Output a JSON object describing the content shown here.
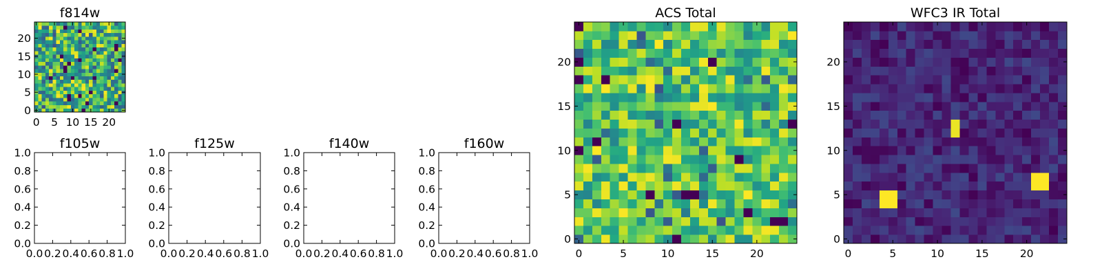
{
  "chart_data": [
    {
      "id": "f814w",
      "type": "heatmap",
      "title": "f814w",
      "grid_size": [
        25,
        25
      ],
      "xlim": [
        -0.5,
        24.5
      ],
      "ylim": [
        -0.5,
        24.5
      ],
      "xticks": [
        0,
        5,
        10,
        15,
        20
      ],
      "yticks": [
        0,
        5,
        10,
        15,
        20
      ],
      "colormap": "viridis",
      "pattern": "noise",
      "range": [
        0.3,
        1.0
      ],
      "seed": 814,
      "values_note": "Pixel intensities are random noise; individual values not legible"
    },
    {
      "id": "f105w",
      "type": "heatmap",
      "title": "f105w",
      "empty": true,
      "xlim": [
        0.0,
        1.0
      ],
      "ylim": [
        0.0,
        1.0
      ],
      "xticks": [
        "0.0",
        "0.2",
        "0.4",
        "0.6",
        "0.8",
        "1.0"
      ],
      "yticks": [
        "0.0",
        "0.2",
        "0.4",
        "0.6",
        "0.8",
        "1.0"
      ]
    },
    {
      "id": "f125w",
      "type": "heatmap",
      "title": "f125w",
      "empty": true,
      "xlim": [
        0.0,
        1.0
      ],
      "ylim": [
        0.0,
        1.0
      ],
      "xticks": [
        "0.0",
        "0.2",
        "0.4",
        "0.6",
        "0.8",
        "1.0"
      ],
      "yticks": [
        "0.0",
        "0.2",
        "0.4",
        "0.6",
        "0.8",
        "1.0"
      ]
    },
    {
      "id": "f140w",
      "type": "heatmap",
      "title": "f140w",
      "empty": true,
      "xlim": [
        0.0,
        1.0
      ],
      "ylim": [
        0.0,
        1.0
      ],
      "xticks": [
        "0.0",
        "0.2",
        "0.4",
        "0.6",
        "0.8",
        "1.0"
      ],
      "yticks": [
        "0.0",
        "0.2",
        "0.4",
        "0.6",
        "0.8",
        "1.0"
      ]
    },
    {
      "id": "f160w",
      "type": "heatmap",
      "title": "f160w",
      "empty": true,
      "xlim": [
        0.0,
        1.0
      ],
      "ylim": [
        0.0,
        1.0
      ],
      "xticks": [
        "0.0",
        "0.2",
        "0.4",
        "0.6",
        "0.8",
        "1.0"
      ],
      "yticks": [
        "0.0",
        "0.2",
        "0.4",
        "0.6",
        "0.8",
        "1.0"
      ]
    },
    {
      "id": "acs-total",
      "type": "heatmap",
      "title": "ACS Total",
      "grid_size": [
        25,
        25
      ],
      "xlim": [
        -0.5,
        24.5
      ],
      "ylim": [
        -0.5,
        24.5
      ],
      "xticks": [
        0,
        5,
        10,
        15,
        20
      ],
      "yticks": [
        0,
        5,
        10,
        15,
        20
      ],
      "colormap": "viridis",
      "pattern": "noise",
      "range": [
        0.45,
        1.0
      ],
      "seed": 4242,
      "values_note": "Pixel intensities are random noise; individual values not legible"
    },
    {
      "id": "wfc3-ir-total",
      "type": "heatmap",
      "title": "WFC3 IR Total",
      "grid_size": [
        25,
        25
      ],
      "xlim": [
        -0.5,
        24.5
      ],
      "ylim": [
        -0.5,
        24.5
      ],
      "xticks": [
        0,
        5,
        10,
        15,
        20
      ],
      "yticks": [
        0,
        5,
        10,
        15,
        20
      ],
      "colormap": "viridis",
      "pattern": "noise",
      "range": [
        0.0,
        0.22
      ],
      "seed": 1600,
      "bright_sources": [
        {
          "x": 4,
          "y": 4,
          "w": 2,
          "h": 2,
          "value": 1.0
        },
        {
          "x": 12,
          "y": 12,
          "w": 1,
          "h": 2,
          "value": 0.97
        },
        {
          "x": 21,
          "y": 6,
          "w": 2,
          "h": 2,
          "value": 1.0
        }
      ]
    }
  ]
}
